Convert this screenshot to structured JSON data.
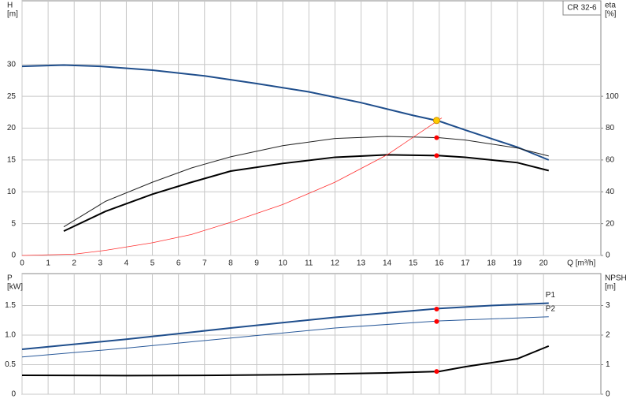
{
  "chart_data": [
    {
      "type": "line",
      "title": "CR 32-6",
      "ylabel": "H",
      "yunit": "[m]",
      "y2label": "eta",
      "y2unit": "[%]",
      "xlabel": "Q [m³/h]",
      "xlim": [
        0,
        22.2
      ],
      "xticks": [
        0,
        1,
        2,
        3,
        4,
        5,
        6,
        7,
        8,
        9,
        10,
        11,
        12,
        13,
        14,
        15,
        16,
        17,
        18,
        19,
        20
      ],
      "show_xtick_labels": true,
      "ylim": [
        0,
        40
      ],
      "yticks": [
        0,
        5,
        10,
        15,
        20,
        25,
        30
      ],
      "y2lim": [
        0,
        160
      ],
      "y2ticks": [
        0,
        20,
        40,
        60,
        80,
        100
      ],
      "grid": true,
      "series": [
        {
          "color": "#1f4e8c",
          "width": 2,
          "x": [
            0,
            1.6,
            3,
            5,
            7,
            9,
            11,
            13,
            15,
            16,
            17,
            19,
            20.2
          ],
          "values": [
            29.7,
            29.9,
            29.7,
            29.1,
            28.2,
            27.0,
            25.7,
            24.0,
            22.0,
            21.1,
            19.7,
            17.0,
            15.0
          ]
        },
        {
          "color": "#222222",
          "width": 1,
          "axis": "y2",
          "x": [
            1.6,
            3.2,
            5,
            6.5,
            8,
            10,
            12,
            14,
            16,
            17,
            19,
            20.2
          ],
          "values": [
            18,
            34,
            46,
            55,
            62,
            69,
            73.5,
            74.8,
            74,
            72.5,
            67.5,
            62.5
          ]
        },
        {
          "color": "#000000",
          "width": 2,
          "axis": "y2",
          "x": [
            1.6,
            3.2,
            5,
            6.5,
            8,
            10,
            12,
            14,
            16,
            17,
            19,
            20.2
          ],
          "values": [
            15.3,
            27.7,
            38.5,
            46,
            53,
            57.8,
            61.7,
            63.2,
            62.7,
            61.7,
            58.3,
            53.3
          ]
        },
        {
          "color": "#ff3030",
          "width": 0.8,
          "x": [
            0,
            2,
            3.2,
            5,
            6.5,
            8,
            10,
            12,
            14,
            16.1
          ],
          "values": [
            0,
            0.2,
            0.8,
            2.0,
            3.3,
            5.2,
            8.0,
            11.5,
            15.8,
            21.6
          ]
        }
      ],
      "points": [
        {
          "x": 15.9,
          "y": 21.2,
          "color": "#ffcc00"
        },
        {
          "x": 15.9,
          "y": 74,
          "axis": "y2",
          "color": "#ff0000"
        },
        {
          "x": 15.9,
          "y": 62.7,
          "axis": "y2",
          "color": "#ff0000"
        }
      ]
    },
    {
      "type": "line",
      "ylabel": "P",
      "yunit": "[kW]",
      "y2label": "NPSH",
      "y2unit": "[m]",
      "xlim": [
        0,
        22.2
      ],
      "xticks": [
        0,
        1,
        2,
        3,
        4,
        5,
        6,
        7,
        8,
        9,
        10,
        11,
        12,
        13,
        14,
        15,
        16,
        17,
        18,
        19,
        20
      ],
      "show_xtick_labels": false,
      "ylim": [
        0,
        2.04
      ],
      "yticks": [
        0,
        0.5,
        {
          "value": 1,
          "label": "1.0"
        },
        1.5
      ],
      "y2lim": [
        0,
        4.08
      ],
      "y2ticks": [
        0,
        1,
        2,
        3
      ],
      "grid": true,
      "series": [
        {
          "name": "P1",
          "color": "#1f4e8c",
          "width": 2,
          "x": [
            0,
            4,
            8,
            12,
            16,
            18,
            20.2
          ],
          "values": [
            0.76,
            0.93,
            1.12,
            1.3,
            1.45,
            1.5,
            1.54
          ]
        },
        {
          "name": "P2",
          "color": "#2a5a9a",
          "width": 1,
          "x": [
            0,
            4,
            8,
            12,
            16,
            20.2
          ],
          "values": [
            0.63,
            0.78,
            0.95,
            1.12,
            1.24,
            1.31
          ]
        },
        {
          "color": "#000000",
          "width": 2,
          "axis": "y2",
          "x": [
            0,
            4,
            7.5,
            10,
            14,
            16,
            17,
            19,
            20.2
          ],
          "values": [
            0.64,
            0.63,
            0.64,
            0.66,
            0.72,
            0.77,
            0.93,
            1.2,
            1.63
          ]
        }
      ],
      "points": [
        {
          "x": 15.9,
          "y": 1.44,
          "color": "#ff0000"
        },
        {
          "x": 15.9,
          "y": 1.23,
          "color": "#ff0000"
        },
        {
          "x": 15.9,
          "y": 0.77,
          "axis": "y2",
          "color": "#ff0000"
        }
      ]
    }
  ]
}
